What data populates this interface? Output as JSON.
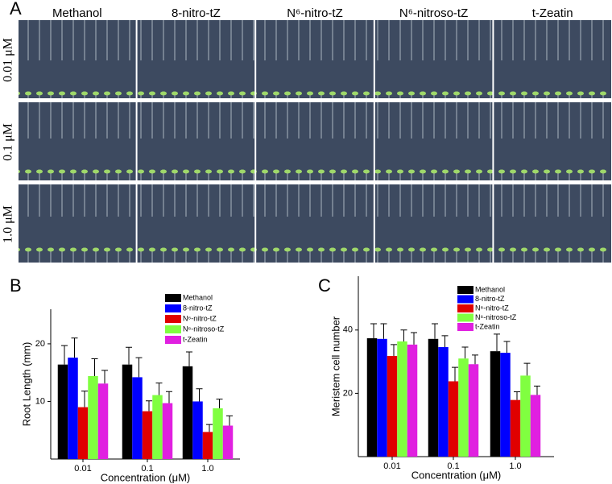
{
  "panel_a": {
    "label": "A",
    "columns": [
      "Methanol",
      "8-nitro-tZ",
      "N⁶-nitro-tZ",
      "N⁶-nitroso-tZ",
      "t-Zeatin"
    ],
    "rows": [
      "0.01 μM",
      "0.1 μM",
      "1.0 μM"
    ]
  },
  "chart_data": [
    {
      "type": "bar",
      "panel": "B",
      "x_label": "Concentration (μM)",
      "y_label": "Root Length (mm)",
      "categories": [
        "0.01",
        "0.1",
        "1.0"
      ],
      "ylim": [
        0,
        26
      ],
      "yticks": [
        10,
        20
      ],
      "legend": "upper right",
      "series": [
        {
          "name": "Methanol",
          "color": "#000000",
          "values": [
            16.4,
            16.4,
            16.1
          ],
          "errors": [
            3.3,
            3.0,
            2.5
          ]
        },
        {
          "name": "8-nitro-tZ",
          "color": "#0000ff",
          "values": [
            17.6,
            14.2,
            10.0
          ],
          "errors": [
            3.4,
            3.4,
            2.2
          ]
        },
        {
          "name": "N⁶-nitro-tZ",
          "color": "#e00000",
          "values": [
            9.0,
            8.3,
            4.7
          ],
          "errors": [
            2.8,
            1.8,
            1.3
          ]
        },
        {
          "name": "N⁶-nitroso-tZ",
          "color": "#80ff40",
          "values": [
            14.4,
            11.1,
            8.8
          ],
          "errors": [
            3.0,
            2.1,
            1.6
          ]
        },
        {
          "name": "t-Zeatin",
          "color": "#e020e0",
          "values": [
            13.1,
            9.7,
            5.8
          ],
          "errors": [
            2.3,
            2.0,
            1.7
          ]
        }
      ]
    },
    {
      "type": "bar",
      "panel": "C",
      "x_label": "Concentration (μM)",
      "y_label": "Meristem cell number",
      "categories": [
        "0.01",
        "0.1",
        "1.0"
      ],
      "ylim": [
        0,
        57
      ],
      "yticks": [
        20,
        40
      ],
      "legend": "upper right",
      "series": [
        {
          "name": "Methanol",
          "color": "#000000",
          "values": [
            37.4,
            37.2,
            33.3
          ],
          "errors": [
            4.6,
            4.8,
            5.4
          ]
        },
        {
          "name": "8-nitro-tZ",
          "color": "#0000ff",
          "values": [
            37.2,
            34.6,
            32.8
          ],
          "errors": [
            4.8,
            3.6,
            3.6
          ]
        },
        {
          "name": "N⁶-nitro-tZ",
          "color": "#e00000",
          "values": [
            31.8,
            23.8,
            17.9
          ],
          "errors": [
            3.6,
            4.4,
            2.6
          ]
        },
        {
          "name": "N⁶-nitroso-tZ",
          "color": "#80ff40",
          "values": [
            36.4,
            31.0,
            25.6
          ],
          "errors": [
            3.6,
            3.6,
            3.9
          ]
        },
        {
          "name": "t-Zeatin",
          "color": "#e020e0",
          "values": [
            35.4,
            29.2,
            19.5
          ],
          "errors": [
            3.8,
            2.9,
            2.8
          ]
        }
      ]
    }
  ]
}
